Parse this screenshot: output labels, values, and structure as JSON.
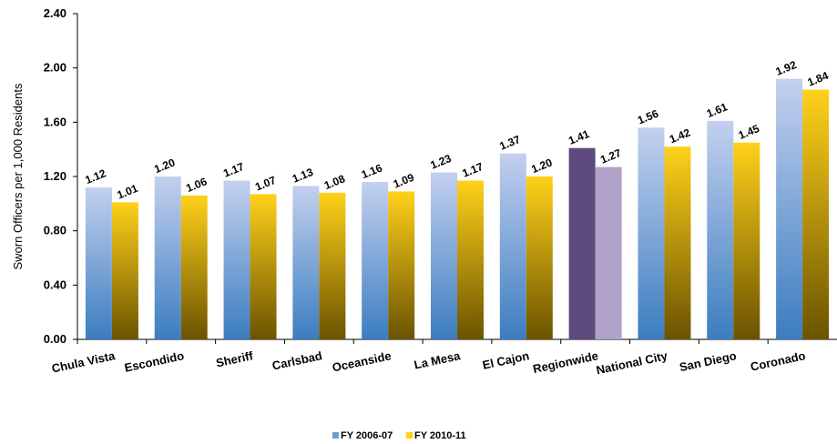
{
  "chart_data": {
    "type": "bar",
    "ylabel": "Sworn Officers per 1,000 Residents",
    "xlabel": "",
    "ylim": [
      0,
      2.4
    ],
    "yticks": [
      "0.00",
      "0.40",
      "0.80",
      "1.20",
      "1.60",
      "2.00",
      "2.40"
    ],
    "yticks_values": [
      0,
      0.4,
      0.8,
      1.2,
      1.6,
      2.0,
      2.4
    ],
    "grid": false,
    "legend_position": "bottom",
    "categories": [
      "Chula Vista",
      "Escondido",
      "Sheriff",
      "Carlsbad",
      "Oceanside",
      "La Mesa",
      "El Cajon",
      "Regionwide",
      "National City",
      "San Diego",
      "Coronado"
    ],
    "series": [
      {
        "name": "FY 2006-07",
        "values": [
          1.12,
          1.2,
          1.17,
          1.13,
          1.16,
          1.23,
          1.37,
          1.41,
          1.56,
          1.61,
          1.92
        ],
        "labels": [
          "1.12",
          "1.20",
          "1.17",
          "1.13",
          "1.16",
          "1.23",
          "1.37",
          "1.41",
          "1.56",
          "1.61",
          "1.92"
        ]
      },
      {
        "name": "FY 2010-11",
        "values": [
          1.01,
          1.06,
          1.07,
          1.08,
          1.09,
          1.17,
          1.2,
          1.27,
          1.42,
          1.45,
          1.84
        ],
        "labels": [
          "1.01",
          "1.06",
          "1.07",
          "1.08",
          "1.09",
          "1.17",
          "1.20",
          "1.27",
          "1.42",
          "1.45",
          "1.84"
        ]
      }
    ],
    "highlight_category": "Regionwide",
    "colors": {
      "series1_top": "#c3d0ee",
      "series1_bottom": "#3b7dc0",
      "series2_top": "#ffd11a",
      "series2_bottom": "#6b5300",
      "highlight1": "#5e4a7c",
      "highlight2": "#b0a2c8",
      "axis": "#000000"
    }
  }
}
